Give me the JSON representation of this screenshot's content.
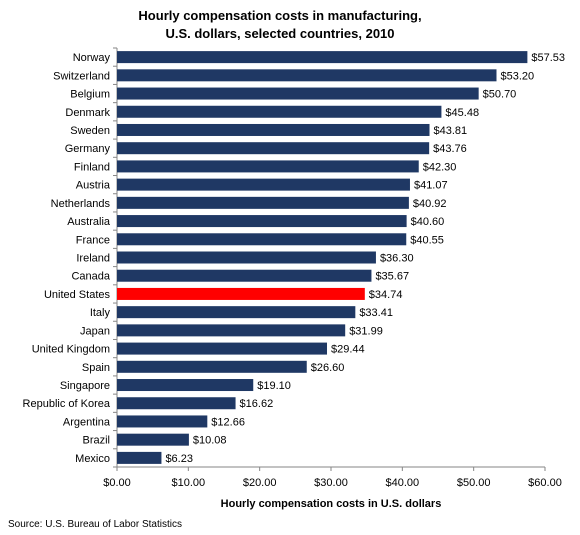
{
  "chart_data": {
    "type": "bar",
    "orientation": "horizontal",
    "title_lines": [
      "Hourly compensation costs in manufacturing,",
      "U.S. dollars, selected countries, 2010"
    ],
    "xlabel": "Hourly compensation  costs in U.S. dollars",
    "source": "Source: U.S. Bureau of Labor Statistics",
    "xlim": [
      0,
      60
    ],
    "ticks": [
      0,
      10,
      20,
      30,
      40,
      50,
      60
    ],
    "tick_labels": [
      "$0.00",
      "$10.00",
      "$20.00",
      "$30.00",
      "$40.00",
      "$50.00",
      "$60.00"
    ],
    "categories": [
      "Norway",
      "Switzerland",
      "Belgium",
      "Denmark",
      "Sweden",
      "Germany",
      "Finland",
      "Austria",
      "Netherlands",
      "Australia",
      "France",
      "Ireland",
      "Canada",
      "United States",
      "Italy",
      "Japan",
      "United Kingdom",
      "Spain",
      "Singapore",
      "Republic of Korea",
      "Argentina",
      "Brazil",
      "Mexico"
    ],
    "values": [
      57.53,
      53.2,
      50.7,
      45.48,
      43.81,
      43.76,
      42.3,
      41.07,
      40.92,
      40.6,
      40.55,
      36.3,
      35.67,
      34.74,
      33.41,
      31.99,
      29.44,
      26.6,
      19.1,
      16.62,
      12.66,
      10.08,
      6.23
    ],
    "value_labels": [
      "$57.53",
      "$53.20",
      "$50.70",
      "$45.48",
      "$43.81",
      "$43.76",
      "$42.30",
      "$41.07",
      "$40.92",
      "$40.60",
      "$40.55",
      "$36.30",
      "$35.67",
      "$34.74",
      "$33.41",
      "$31.99",
      "$29.44",
      "$26.60",
      "$19.10",
      "$16.62",
      "$12.66",
      "$10.08",
      "$6.23"
    ],
    "bar_color": "#1f3864",
    "highlight_category": "United States",
    "highlight_color": "#ff0000",
    "grid": false,
    "legend": false
  }
}
